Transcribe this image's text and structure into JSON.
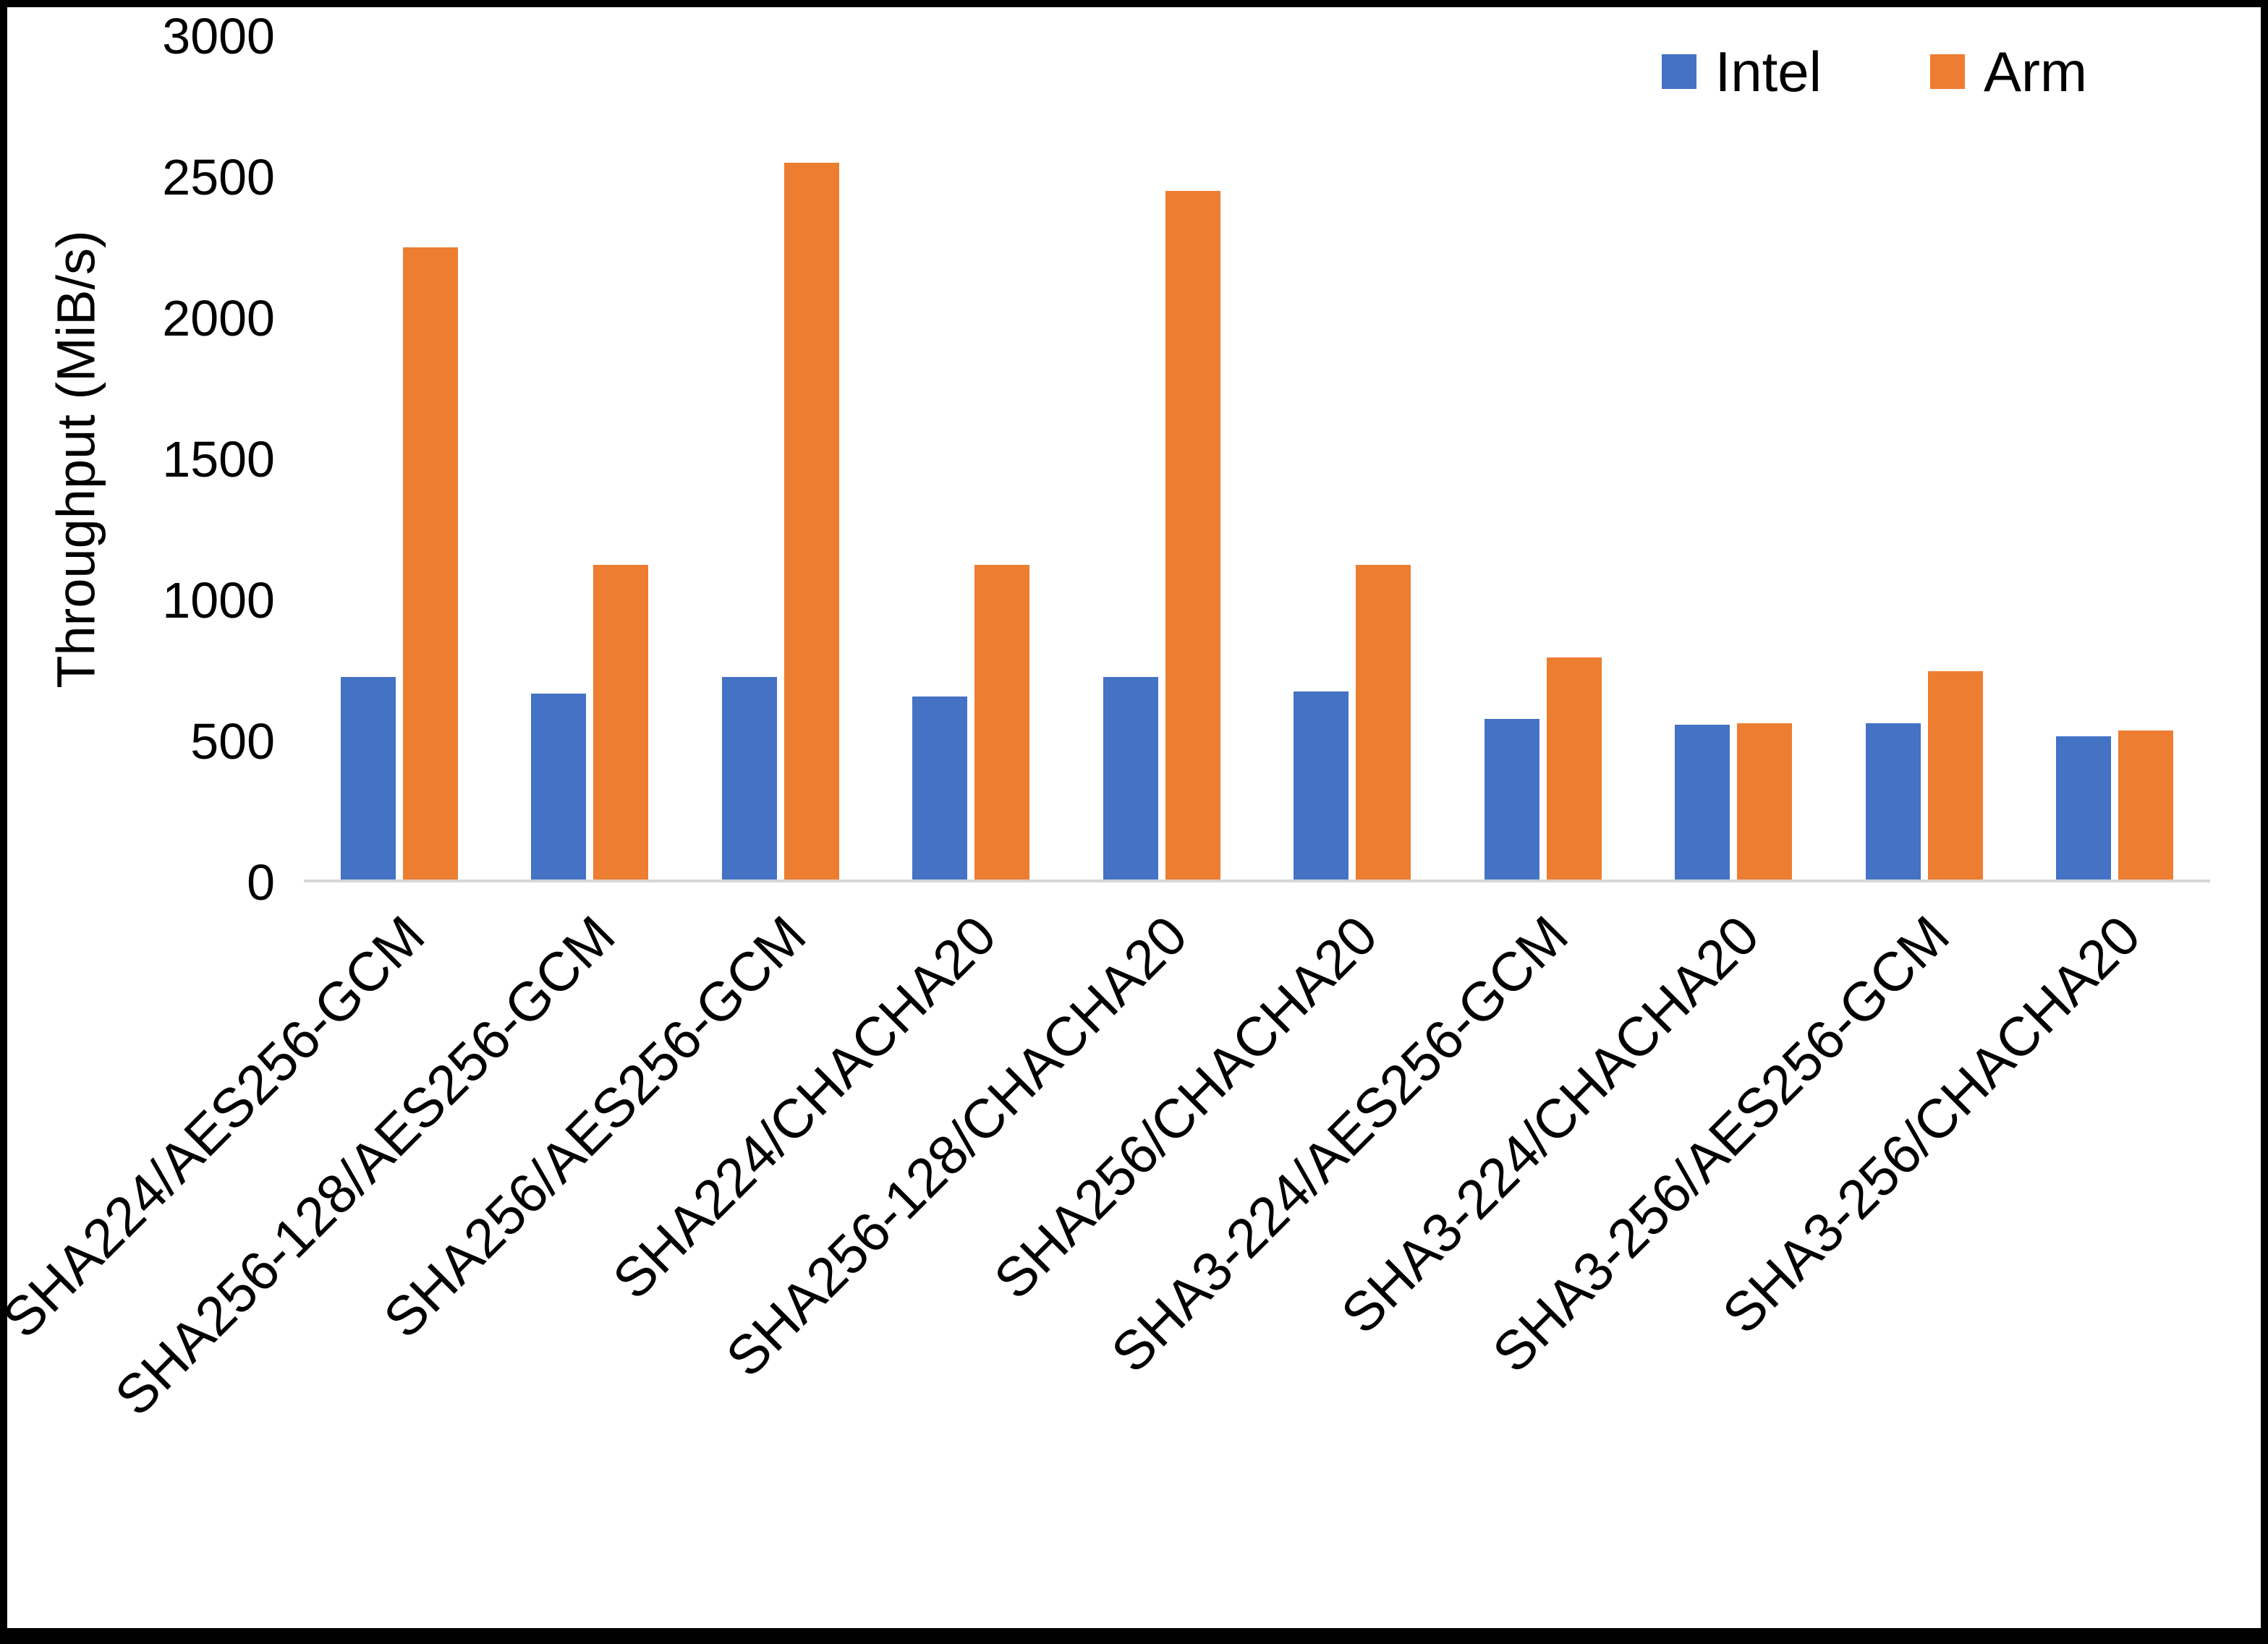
{
  "chart_data": {
    "type": "bar",
    "title": "",
    "xlabel": "",
    "ylabel": "Throughput (MiB/s)",
    "ylim": [
      0,
      3000
    ],
    "yticks": [
      0,
      500,
      1000,
      1500,
      2000,
      2500,
      3000
    ],
    "grid": false,
    "legend_position": "top-right",
    "categories": [
      "SHA224/AES256-GCM",
      "SHA256-128/AES256-GCM",
      "SHA256/AES256-GCM",
      "SHA224/CHACHA20",
      "SHA256-128/CHACHA20",
      "SHA256/CHACHA20",
      "SHA3-224/AES256-GCM",
      "SHA3-224/CHACHA20",
      "SHA3-256/AES256-GCM",
      "SHA3-256/CHACHA20"
    ],
    "series": [
      {
        "name": "Intel",
        "color": "#4472C4",
        "values": [
          720,
          660,
          720,
          650,
          720,
          670,
          570,
          550,
          555,
          510
        ]
      },
      {
        "name": "Arm",
        "color": "#ED7D31",
        "values": [
          2250,
          1120,
          2550,
          1120,
          2450,
          1120,
          790,
          555,
          740,
          530
        ]
      }
    ],
    "colors": {
      "intel": "#4472C4",
      "arm": "#ED7D31",
      "axis_line": "#d6d6d6",
      "text": "#000000"
    }
  }
}
